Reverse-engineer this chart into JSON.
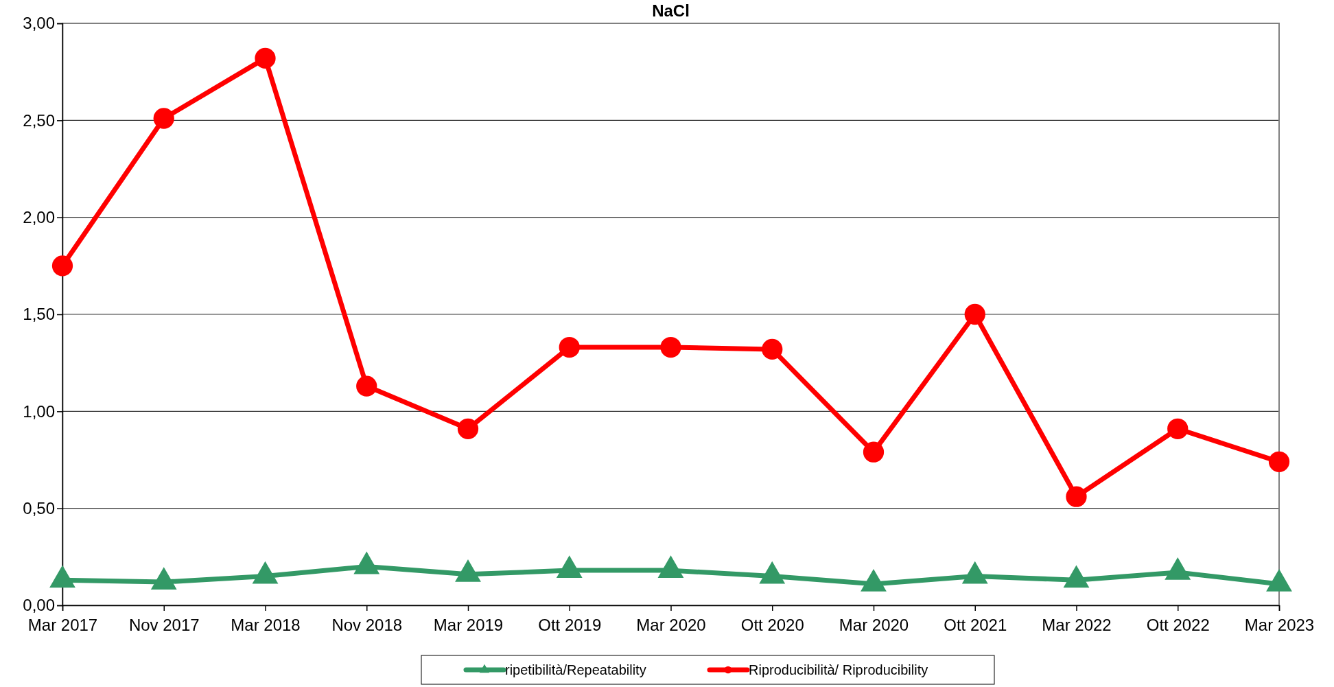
{
  "chart_data": {
    "type": "line",
    "title": "NaCl",
    "categories": [
      "Mar 2017",
      "Nov 2017",
      "Mar 2018",
      "Nov 2018",
      "Mar 2019",
      "Ott 2019",
      "Mar 2020",
      "Ott 2020",
      "Mar 2020",
      "Ott 2021",
      "Mar 2022",
      "Ott 2022",
      "Mar 2023"
    ],
    "series": [
      {
        "name": "ripetibilità/Repeatability",
        "color": "#339966",
        "marker": "triangle",
        "values": [
          0.13,
          0.12,
          0.15,
          0.2,
          0.16,
          0.18,
          0.18,
          0.15,
          0.11,
          0.15,
          0.13,
          0.17,
          0.11
        ]
      },
      {
        "name": "Riproducibilità/ Riproducibility",
        "color": "#ff0000",
        "marker": "circle",
        "values": [
          1.75,
          2.51,
          2.82,
          1.13,
          0.91,
          1.33,
          1.33,
          1.32,
          0.79,
          1.5,
          0.56,
          0.91,
          0.74
        ]
      }
    ],
    "ylim": [
      0,
      3
    ],
    "yticks": [
      {
        "value": 0,
        "label": "0,00"
      },
      {
        "value": 0.5,
        "label": "0,50"
      },
      {
        "value": 1,
        "label": "1,00"
      },
      {
        "value": 1.5,
        "label": "1,50"
      },
      {
        "value": 2,
        "label": "2,00"
      },
      {
        "value": 2.5,
        "label": "2,50"
      },
      {
        "value": 3,
        "label": "3,00"
      }
    ],
    "grid": "y",
    "legend": "bottom"
  }
}
